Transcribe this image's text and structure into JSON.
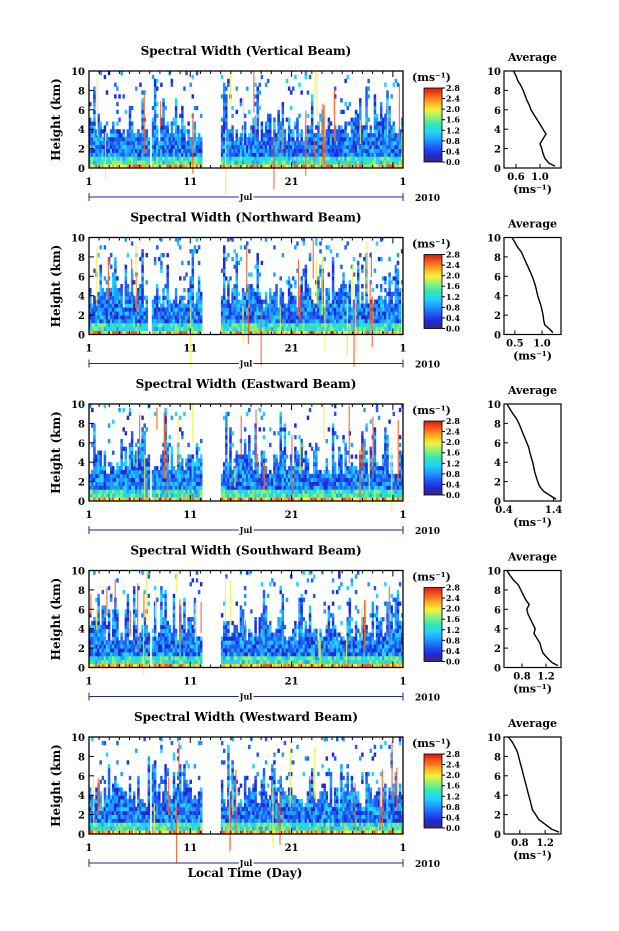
{
  "figure": {
    "xlabel": "Local Time (Day)",
    "month_label": "Jul",
    "year_label": "2010",
    "x_ticks": [
      "1",
      "11",
      "21",
      "1"
    ],
    "height_ticks": [
      "0",
      "2",
      "4",
      "6",
      "8",
      "10"
    ],
    "cb_unit": "(ms⁻¹)",
    "avg_title": "Average",
    "avg_unit": "(ms⁻¹)"
  },
  "colors": {
    "colormap": [
      "#3b2a78",
      "#1f2ad6",
      "#1f5cf5",
      "#1f9cff",
      "#23d2ff",
      "#33e6b0",
      "#8cf07a",
      "#f5f23a",
      "#ffb021",
      "#ff5a1f",
      "#d11a0f"
    ]
  },
  "chart_data": [
    {
      "type": "heatmap",
      "title": "Spectral Width (Vertical Beam)",
      "ylabel": "Height (km)",
      "xlim": [
        1,
        32
      ],
      "ylim": [
        0,
        10
      ],
      "colorbar": {
        "ticks": [
          "0.0",
          "0.4",
          "0.8",
          "1.2",
          "1.6",
          "2.0",
          "2.4",
          "2.8"
        ],
        "range": [
          0,
          2.8
        ]
      },
      "data_gaps_days": [
        [
          7.0,
          7.3
        ],
        [
          12.2,
          14.0
        ]
      ],
      "average_profile": {
        "xlim": [
          0.4,
          1.35
        ],
        "xticks": [
          "0.6",
          "1.0"
        ],
        "xtick_values": [
          0.6,
          1.0
        ],
        "height_km": [
          0.2,
          0.5,
          1.0,
          1.5,
          2.0,
          2.5,
          3.0,
          3.5,
          4.0,
          4.5,
          5.0,
          5.5,
          6.0,
          6.5,
          7.0,
          7.5,
          8.0,
          8.5,
          9.0,
          9.5,
          10.0
        ],
        "width": [
          1.25,
          1.15,
          1.08,
          1.05,
          1.03,
          1.0,
          1.05,
          1.1,
          1.05,
          1.0,
          0.95,
          0.9,
          0.85,
          0.82,
          0.78,
          0.75,
          0.72,
          0.68,
          0.63,
          0.6,
          0.56
        ]
      }
    },
    {
      "type": "heatmap",
      "title": "Spectral Width (Northward Beam)",
      "ylabel": "Height (km)",
      "xlim": [
        1,
        32
      ],
      "ylim": [
        0,
        10
      ],
      "colorbar": {
        "ticks": [
          "0.0",
          "0.4",
          "0.8",
          "1.2",
          "1.6",
          "2.0",
          "2.4",
          "2.8"
        ],
        "range": [
          0,
          2.8
        ]
      },
      "data_gaps_days": [
        [
          6.8,
          7.1
        ],
        [
          12.2,
          14.0
        ]
      ],
      "average_profile": {
        "xlim": [
          0.3,
          1.35
        ],
        "xticks": [
          "0.5",
          "1.0"
        ],
        "xtick_values": [
          0.5,
          1.0
        ],
        "height_km": [
          0.2,
          0.5,
          1.0,
          1.5,
          2.0,
          2.5,
          3.0,
          3.5,
          4.0,
          4.5,
          5.0,
          5.5,
          6.0,
          6.5,
          7.0,
          7.5,
          8.0,
          8.5,
          9.0,
          9.5,
          10.0
        ],
        "width": [
          1.2,
          1.15,
          1.05,
          1.03,
          1.02,
          1.0,
          0.98,
          0.95,
          0.92,
          0.9,
          0.88,
          0.85,
          0.82,
          0.78,
          0.74,
          0.7,
          0.66,
          0.62,
          0.55,
          0.5,
          0.45
        ]
      }
    },
    {
      "type": "heatmap",
      "title": "Spectral Width (Eastward Beam)",
      "ylabel": "Height (km)",
      "xlim": [
        1,
        32
      ],
      "ylim": [
        0,
        10
      ],
      "colorbar": {
        "ticks": [
          "0.0",
          "0.4",
          "0.8",
          "1.2",
          "1.6",
          "2.0",
          "2.4",
          "2.8"
        ],
        "range": [
          0,
          2.8
        ]
      },
      "data_gaps_days": [
        [
          6.9,
          7.2
        ],
        [
          12.2,
          14.0
        ]
      ],
      "average_profile": {
        "xlim": [
          0.4,
          1.55
        ],
        "xticks": [
          "0.4",
          "1.4"
        ],
        "xtick_values": [
          0.4,
          1.4
        ],
        "height_km": [
          0.2,
          0.5,
          1.0,
          1.5,
          2.0,
          2.5,
          3.0,
          3.5,
          4.0,
          4.5,
          5.0,
          5.5,
          6.0,
          6.5,
          7.0,
          7.5,
          8.0,
          8.5,
          9.0,
          9.5,
          10.0
        ],
        "width": [
          1.45,
          1.35,
          1.2,
          1.12,
          1.08,
          1.05,
          1.02,
          1.0,
          0.98,
          0.95,
          0.92,
          0.9,
          0.86,
          0.82,
          0.78,
          0.74,
          0.7,
          0.65,
          0.58,
          0.52,
          0.46
        ]
      }
    },
    {
      "type": "heatmap",
      "title": "Spectral Width (Southward Beam)",
      "ylabel": "Height (km)",
      "xlim": [
        1,
        32
      ],
      "ylim": [
        0,
        10
      ],
      "colorbar": {
        "ticks": [
          "0.0",
          "0.4",
          "0.8",
          "1.2",
          "1.6",
          "2.0",
          "2.4",
          "2.8"
        ],
        "range": [
          0,
          2.8
        ]
      },
      "data_gaps_days": [
        [
          6.9,
          7.2
        ],
        [
          12.2,
          14.0
        ]
      ],
      "average_profile": {
        "xlim": [
          0.5,
          1.45
        ],
        "xticks": [
          "0.8",
          "1.2"
        ],
        "xtick_values": [
          0.8,
          1.2
        ],
        "height_km": [
          0.2,
          0.5,
          1.0,
          1.5,
          2.0,
          2.5,
          3.0,
          3.5,
          4.0,
          4.5,
          5.0,
          5.5,
          6.0,
          6.5,
          7.0,
          7.5,
          8.0,
          8.5,
          9.0,
          9.5,
          10.0
        ],
        "width": [
          1.4,
          1.3,
          1.22,
          1.15,
          1.12,
          1.1,
          1.05,
          1.0,
          1.02,
          0.98,
          0.94,
          0.9,
          0.88,
          0.92,
          0.86,
          0.82,
          0.78,
          0.74,
          0.66,
          0.6,
          0.55
        ]
      }
    },
    {
      "type": "heatmap",
      "title": "Spectral Width (Westward Beam)",
      "ylabel": "Height (km)",
      "xlim": [
        1,
        32
      ],
      "ylim": [
        0,
        10
      ],
      "colorbar": {
        "ticks": [
          "0.0",
          "0.4",
          "0.8",
          "1.2",
          "1.6",
          "2.0",
          "2.4",
          "2.8"
        ],
        "range": [
          0,
          2.8
        ]
      },
      "data_gaps_days": [
        [
          6.9,
          7.2
        ],
        [
          12.2,
          14.0
        ]
      ],
      "average_profile": {
        "xlim": [
          0.55,
          1.45
        ],
        "xticks": [
          "0.8",
          "1.2"
        ],
        "xtick_values": [
          0.8,
          1.2
        ],
        "height_km": [
          0.2,
          0.5,
          1.0,
          1.5,
          2.0,
          2.5,
          3.0,
          3.5,
          4.0,
          4.5,
          5.0,
          5.5,
          6.0,
          6.5,
          7.0,
          7.5,
          8.0,
          8.5,
          9.0,
          9.5,
          10.0
        ],
        "width": [
          1.42,
          1.3,
          1.2,
          1.1,
          1.05,
          1.0,
          0.98,
          0.96,
          0.94,
          0.92,
          0.9,
          0.88,
          0.86,
          0.84,
          0.82,
          0.8,
          0.78,
          0.76,
          0.72,
          0.68,
          0.62
        ]
      }
    }
  ]
}
